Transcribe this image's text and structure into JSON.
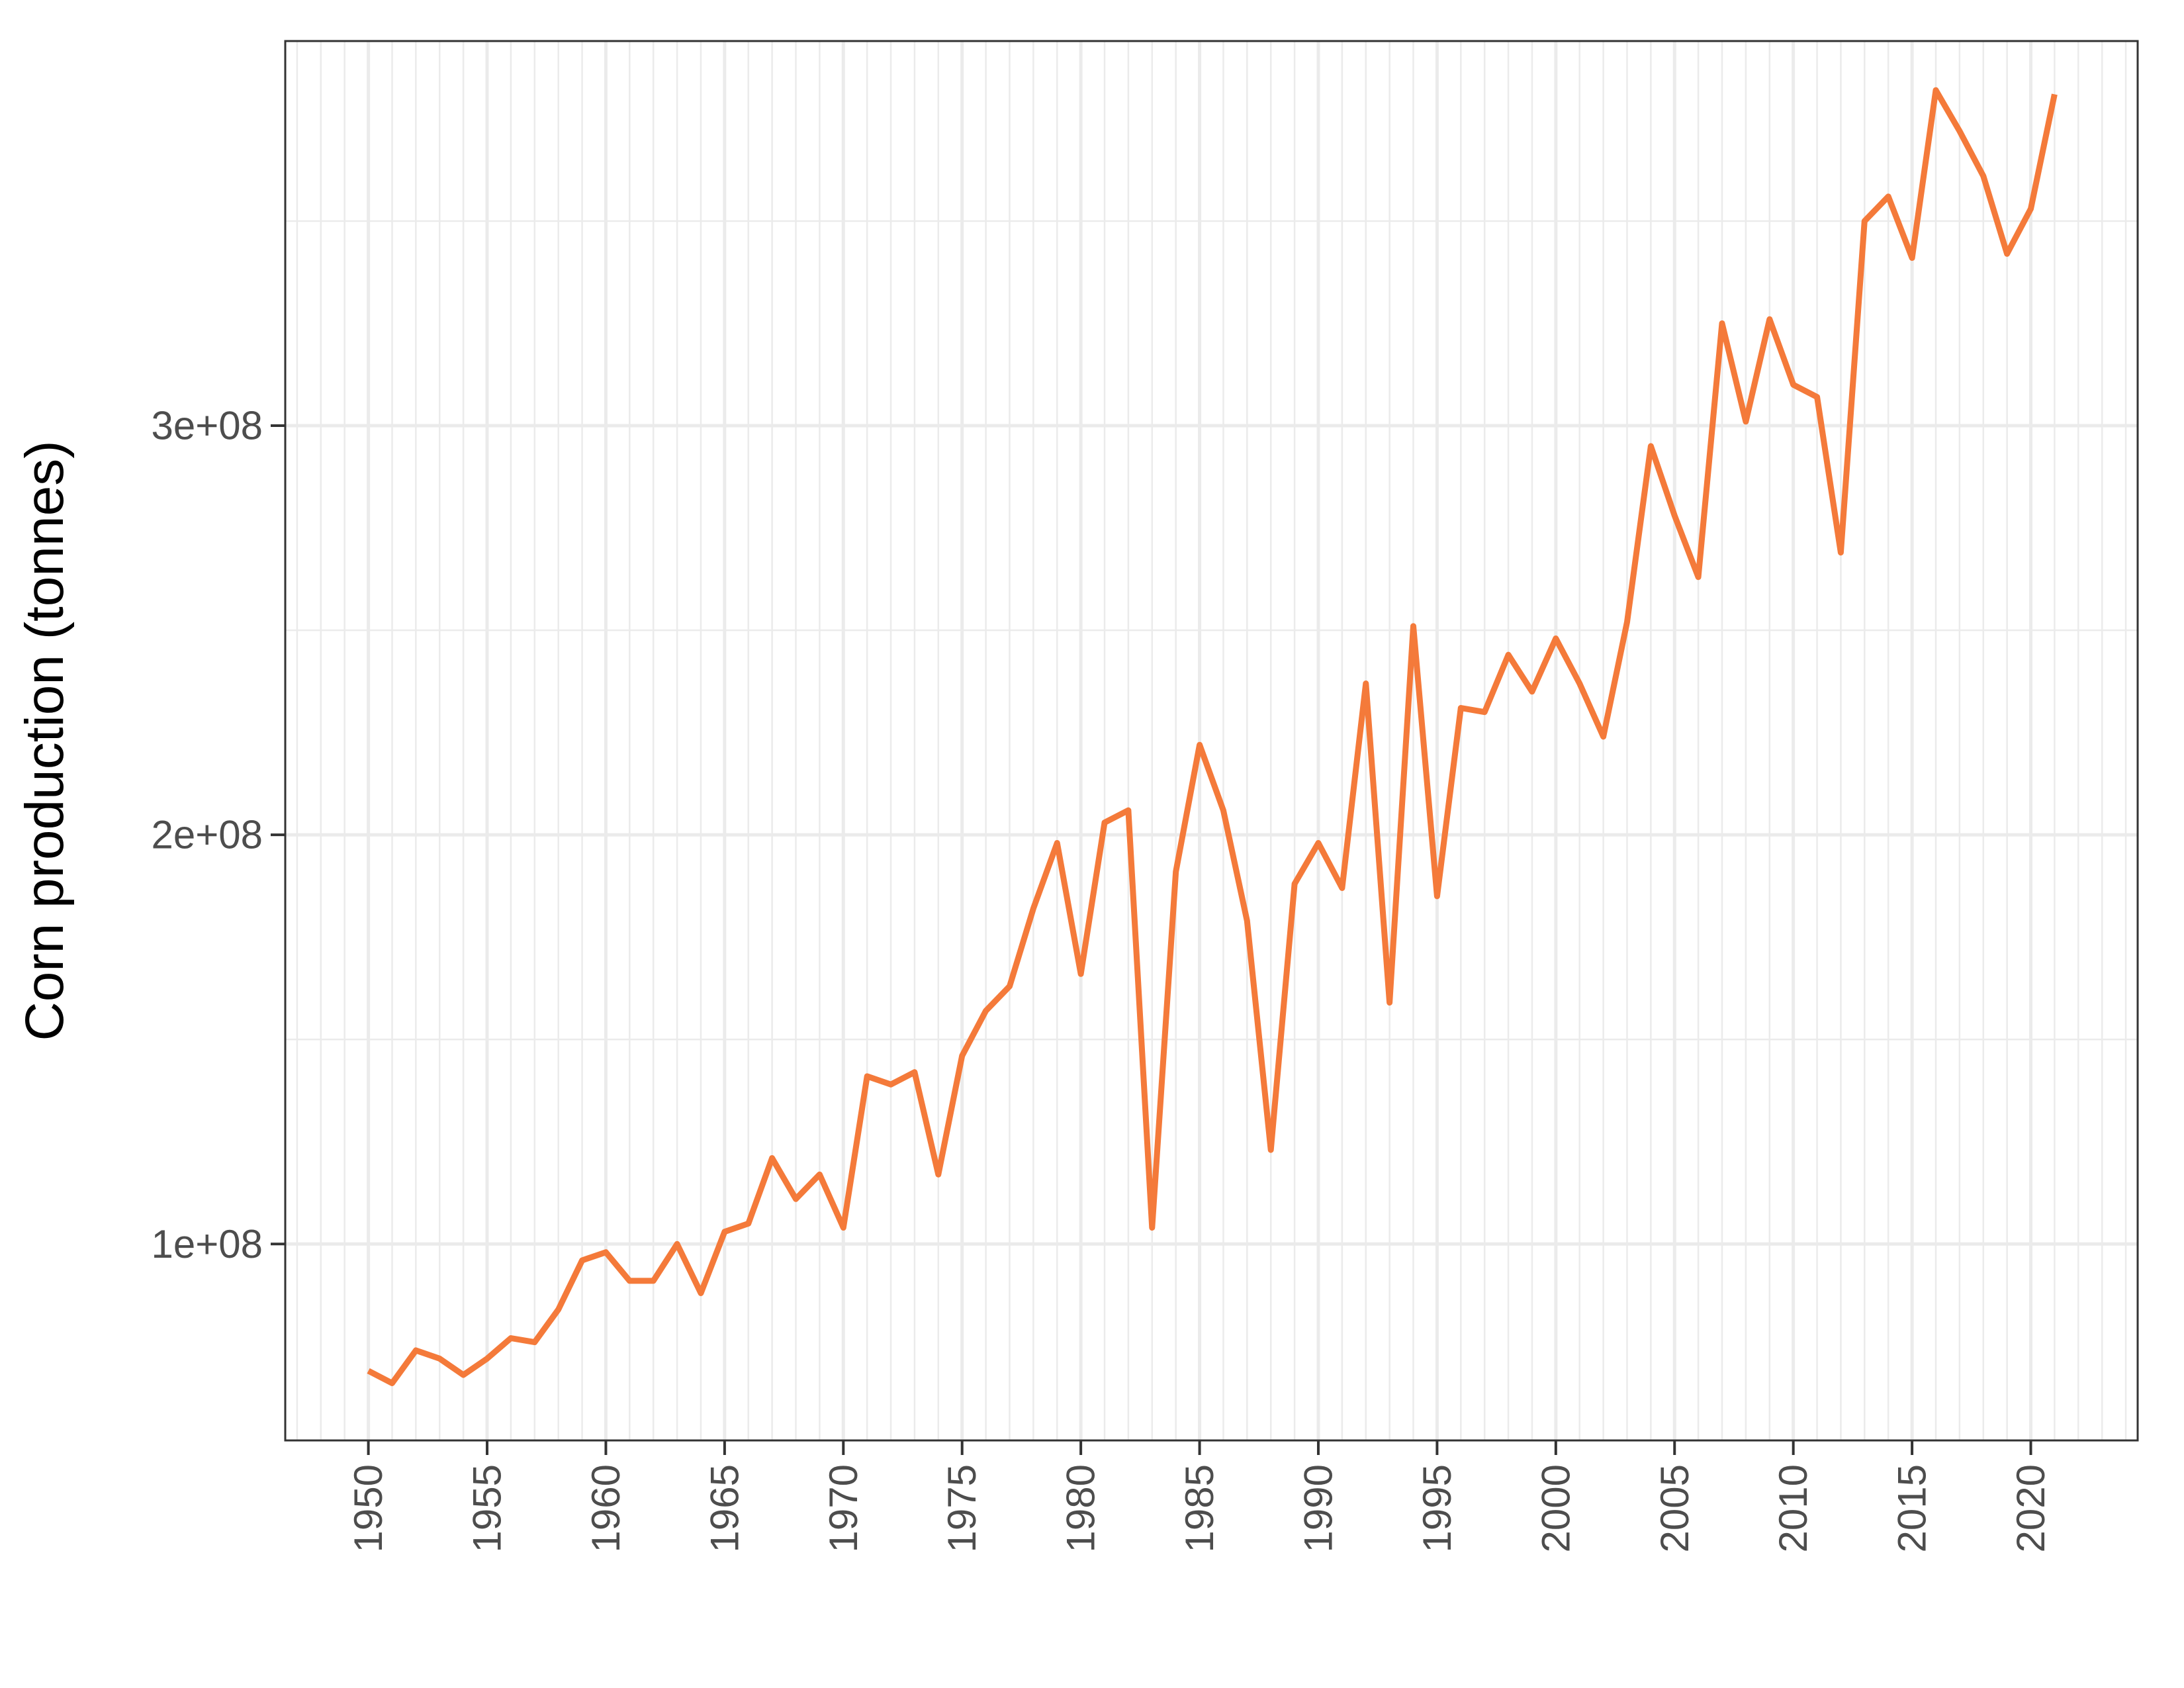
{
  "chart_data": {
    "type": "line",
    "title": "",
    "xlabel": "",
    "ylabel": "Corn production (tonnes)",
    "grid": true,
    "xlim": [
      1946.5,
      2024.5
    ],
    "ylim": [
      52000000,
      394000000
    ],
    "x_ticks": [
      1950,
      1955,
      1960,
      1965,
      1970,
      1975,
      1980,
      1985,
      1990,
      1995,
      2000,
      2005,
      2010,
      2015,
      2020
    ],
    "x_tick_labels": [
      "1950",
      "1955",
      "1960",
      "1965",
      "1970",
      "1975",
      "1980",
      "1985",
      "1990",
      "1995",
      "2000",
      "2005",
      "2010",
      "2015",
      "2020"
    ],
    "y_ticks": [
      100000000,
      200000000,
      300000000
    ],
    "y_tick_labels": [
      "1e+08",
      "2e+08",
      "3e+08"
    ],
    "colors": {
      "line": "#F47A3A",
      "panel_border": "#333333",
      "grid": "#EBEBEB",
      "tick_text": "#4D4D4D"
    },
    "series": [
      {
        "x": [
          1950,
          1951,
          1952,
          1953,
          1954,
          1955,
          1956,
          1957,
          1958,
          1959,
          1960,
          1961,
          1962,
          1963,
          1964,
          1965,
          1966,
          1967,
          1968,
          1969,
          1970,
          1971,
          1972,
          1973,
          1974,
          1975,
          1976,
          1977,
          1978,
          1979,
          1980,
          1981,
          1982,
          1983,
          1984,
          1985,
          1986,
          1987,
          1988,
          1989,
          1990,
          1991,
          1992,
          1993,
          1994,
          1995,
          1996,
          1997,
          1998,
          1999,
          2000,
          2001,
          2002,
          2003,
          2004,
          2005,
          2006,
          2007,
          2008,
          2009,
          2010,
          2011,
          2012,
          2013,
          2014,
          2015,
          2016,
          2017,
          2018,
          2019,
          2020,
          2021
        ],
        "values": [
          69000000,
          66000000,
          74000000,
          72000000,
          68000000,
          72000000,
          77000000,
          76000000,
          84000000,
          96000000,
          98000000,
          91000000,
          91000000,
          100000000,
          88000000,
          103000000,
          105000000,
          121000000,
          111000000,
          117000000,
          104000000,
          141000000,
          139000000,
          142000000,
          117000000,
          146000000,
          157000000,
          163000000,
          182000000,
          198000000,
          166000000,
          203000000,
          206000000,
          104000000,
          191000000,
          222000000,
          206000000,
          179000000,
          123000000,
          188000000,
          198000000,
          187000000,
          237000000,
          159000000,
          251000000,
          185000000,
          231000000,
          230000000,
          244000000,
          235000000,
          248000000,
          237000000,
          224000000,
          252000000,
          295000000,
          278000000,
          263000000,
          325000000,
          301000000,
          326000000,
          310000000,
          307000000,
          269000000,
          350000000,
          356000000,
          341000000,
          382000000,
          372000000,
          361000000,
          342000000,
          353000000,
          381000000
        ]
      }
    ]
  }
}
